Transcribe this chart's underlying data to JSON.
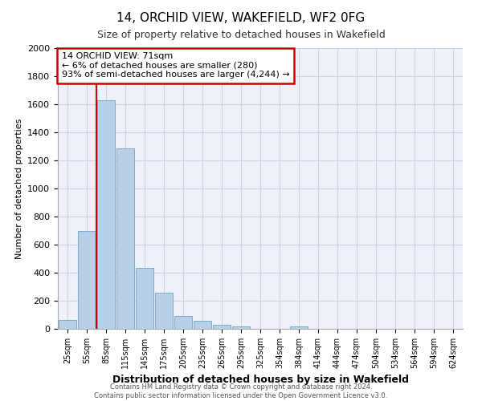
{
  "title": "14, ORCHID VIEW, WAKEFIELD, WF2 0FG",
  "subtitle": "Size of property relative to detached houses in Wakefield",
  "xlabel": "Distribution of detached houses by size in Wakefield",
  "ylabel": "Number of detached properties",
  "bar_labels": [
    "25sqm",
    "55sqm",
    "85sqm",
    "115sqm",
    "145sqm",
    "175sqm",
    "205sqm",
    "235sqm",
    "265sqm",
    "295sqm",
    "325sqm",
    "354sqm",
    "384sqm",
    "414sqm",
    "444sqm",
    "474sqm",
    "504sqm",
    "534sqm",
    "564sqm",
    "594sqm",
    "624sqm"
  ],
  "bar_values": [
    65,
    700,
    1630,
    1285,
    435,
    255,
    90,
    55,
    30,
    20,
    0,
    0,
    15,
    0,
    0,
    0,
    0,
    0,
    0,
    0,
    0
  ],
  "bar_color": "#b8cfe8",
  "bar_edgecolor": "#7aaad0",
  "annotation_title": "14 ORCHID VIEW: 71sqm",
  "annotation_line1": "← 6% of detached houses are smaller (280)",
  "annotation_line2": "93% of semi-detached houses are larger (4,244) →",
  "annotation_box_color": "#ffffff",
  "annotation_box_edgecolor": "#cc0000",
  "vline_color": "#cc0000",
  "ylim": [
    0,
    2000
  ],
  "yticks": [
    0,
    200,
    400,
    600,
    800,
    1000,
    1200,
    1400,
    1600,
    1800,
    2000
  ],
  "footer_line1": "Contains HM Land Registry data © Crown copyright and database right 2024.",
  "footer_line2": "Contains public sector information licensed under the Open Government Licence v3.0.",
  "background_color": "#ffffff",
  "grid_color": "#c8d4e8"
}
